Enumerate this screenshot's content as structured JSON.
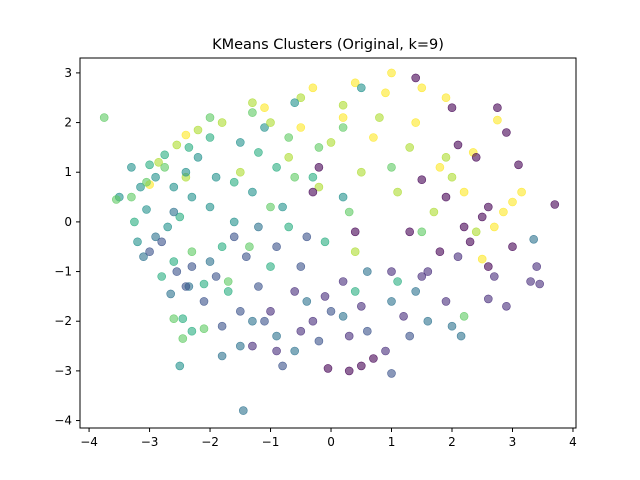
{
  "chart_data": {
    "type": "scatter",
    "title": "KMeans Clusters (Original, k=9)",
    "xlabel": "",
    "ylabel": "",
    "xlim": [
      -4.15,
      4.05
    ],
    "ylim": [
      -4.15,
      3.3
    ],
    "xticks": [
      -4,
      -3,
      -2,
      -1,
      0,
      1,
      2,
      3,
      4
    ],
    "yticks": [
      -4,
      -3,
      -2,
      -1,
      0,
      1,
      2,
      3
    ],
    "grid": false,
    "legend": "none",
    "marker_alpha": 0.6,
    "colormap": "viridis",
    "cluster_colors": [
      "#440154",
      "#472d7b",
      "#3b528b",
      "#2c728e",
      "#21918c",
      "#28ae80",
      "#5ec962",
      "#addc30",
      "#fde725"
    ],
    "series": [
      {
        "values": [
          [
            1.5,
            0.85
          ],
          [
            2.6,
            0.3
          ],
          [
            2.2,
            -0.1
          ],
          [
            3.7,
            0.35
          ],
          [
            3.1,
            1.15
          ],
          [
            2.75,
            2.3
          ],
          [
            2.9,
            1.8
          ],
          [
            3.0,
            -0.5
          ],
          [
            2.6,
            -0.9
          ],
          [
            2.3,
            -0.4
          ],
          [
            1.4,
            2.9
          ],
          [
            2.0,
            2.3
          ],
          [
            0.5,
            -2.9
          ],
          [
            0.7,
            -2.75
          ],
          [
            -0.05,
            -2.95
          ],
          [
            0.3,
            -3.0
          ],
          [
            1.3,
            -0.2
          ],
          [
            1.9,
            0.5
          ],
          [
            2.4,
            1.3
          ],
          [
            2.1,
            1.55
          ],
          [
            -0.3,
            0.6
          ],
          [
            0.4,
            -0.2
          ],
          [
            -0.2,
            1.1
          ],
          [
            2.5,
            0.1
          ],
          [
            1.8,
            -0.6
          ]
        ]
      },
      {
        "values": [
          [
            2.9,
            -1.7
          ],
          [
            3.45,
            -1.25
          ],
          [
            3.3,
            -1.2
          ],
          [
            3.4,
            -0.9
          ],
          [
            2.7,
            -1.1
          ],
          [
            1.9,
            -1.6
          ],
          [
            1.6,
            -1.0
          ],
          [
            1.2,
            -1.9
          ],
          [
            0.5,
            -1.7
          ],
          [
            -0.1,
            -1.5
          ],
          [
            -0.5,
            -2.2
          ],
          [
            -0.9,
            -2.6
          ],
          [
            -1.3,
            -2.5
          ],
          [
            -1.0,
            -1.8
          ],
          [
            0.9,
            -2.6
          ],
          [
            1.5,
            -1.1
          ],
          [
            2.1,
            -0.7
          ],
          [
            0.2,
            -1.2
          ],
          [
            -0.6,
            -1.4
          ],
          [
            1.0,
            -1.0
          ],
          [
            2.6,
            -1.55
          ],
          [
            0.3,
            -2.3
          ],
          [
            -0.3,
            -2.0
          ]
        ]
      },
      {
        "values": [
          [
            -1.4,
            -0.7
          ],
          [
            -1.9,
            -1.1
          ],
          [
            -2.3,
            -0.9
          ],
          [
            -2.55,
            -1.0
          ],
          [
            -1.1,
            -2.0
          ],
          [
            -0.8,
            -2.9
          ],
          [
            -0.2,
            -2.4
          ],
          [
            0.6,
            -2.2
          ],
          [
            1.0,
            -3.05
          ],
          [
            -1.8,
            -2.1
          ],
          [
            -2.1,
            -1.6
          ],
          [
            -1.2,
            -1.3
          ],
          [
            -0.5,
            -0.9
          ],
          [
            -1.6,
            -0.3
          ],
          [
            -0.9,
            -0.5
          ],
          [
            -2.8,
            -0.4
          ],
          [
            -3.0,
            -0.6
          ],
          [
            0.0,
            -1.8
          ],
          [
            1.3,
            -2.3
          ],
          [
            -1.5,
            -1.8
          ],
          [
            -0.4,
            -0.3
          ],
          [
            -2.4,
            -1.3
          ]
        ]
      },
      {
        "values": [
          [
            -1.45,
            -3.8
          ],
          [
            -2.35,
            -1.3
          ],
          [
            -2.65,
            -1.45
          ],
          [
            -3.1,
            -0.7
          ],
          [
            -2.9,
            -0.3
          ],
          [
            -1.5,
            -2.5
          ],
          [
            -1.8,
            -2.7
          ],
          [
            -0.9,
            -2.3
          ],
          [
            0.2,
            -1.9
          ],
          [
            1.0,
            -1.6
          ],
          [
            1.6,
            -2.0
          ],
          [
            2.0,
            -2.1
          ],
          [
            2.15,
            -2.3
          ],
          [
            -2.0,
            -0.8
          ],
          [
            -1.2,
            -0.1
          ],
          [
            -0.4,
            -1.6
          ],
          [
            0.6,
            -1.0
          ],
          [
            -2.6,
            0.2
          ],
          [
            3.35,
            -0.35
          ],
          [
            -1.3,
            -2.0
          ],
          [
            -0.6,
            -2.6
          ],
          [
            1.4,
            -1.4
          ]
        ]
      },
      {
        "values": [
          [
            -3.5,
            0.5
          ],
          [
            -3.15,
            0.7
          ],
          [
            -3.3,
            1.1
          ],
          [
            -2.9,
            0.9
          ],
          [
            -2.6,
            0.7
          ],
          [
            -2.3,
            0.5
          ],
          [
            -2.0,
            0.3
          ],
          [
            -1.6,
            0.0
          ],
          [
            -2.2,
            1.3
          ],
          [
            -1.9,
            0.9
          ],
          [
            -1.5,
            1.6
          ],
          [
            -2.7,
            -0.1
          ],
          [
            -3.2,
            -0.4
          ],
          [
            0.5,
            2.7
          ],
          [
            -0.6,
            2.4
          ],
          [
            -1.1,
            1.9
          ],
          [
            -0.8,
            0.3
          ],
          [
            0.2,
            0.5
          ],
          [
            -2.5,
            -2.9
          ],
          [
            -2.4,
            1.0
          ],
          [
            -1.3,
            0.6
          ],
          [
            -3.05,
            0.25
          ]
        ]
      },
      {
        "values": [
          [
            -3.0,
            1.15
          ],
          [
            -2.75,
            1.35
          ],
          [
            -2.35,
            1.5
          ],
          [
            -2.6,
            -0.8
          ],
          [
            -2.8,
            -1.1
          ],
          [
            -2.1,
            -1.25
          ],
          [
            -1.7,
            -1.4
          ],
          [
            -2.3,
            -2.2
          ],
          [
            -1.0,
            -0.9
          ],
          [
            -0.7,
            -0.1
          ],
          [
            -1.6,
            0.8
          ],
          [
            -2.0,
            1.7
          ],
          [
            -1.2,
            1.4
          ],
          [
            -0.3,
            0.9
          ],
          [
            -0.1,
            -0.4
          ],
          [
            -2.5,
            0.1
          ],
          [
            -3.25,
            0.0
          ],
          [
            -2.45,
            -1.95
          ],
          [
            0.4,
            -1.4
          ],
          [
            -1.8,
            -0.5
          ],
          [
            1.1,
            -1.2
          ],
          [
            -0.9,
            1.1
          ]
        ]
      },
      {
        "values": [
          [
            -3.75,
            2.1
          ],
          [
            -3.3,
            0.5
          ],
          [
            -3.55,
            0.45
          ],
          [
            -3.05,
            0.8
          ],
          [
            -2.75,
            1.1
          ],
          [
            -2.6,
            -1.95
          ],
          [
            -2.1,
            -2.15
          ],
          [
            -2.45,
            -2.35
          ],
          [
            -1.7,
            -1.2
          ],
          [
            -1.35,
            -0.5
          ],
          [
            -1.0,
            0.3
          ],
          [
            -0.6,
            0.9
          ],
          [
            -0.2,
            1.5
          ],
          [
            0.3,
            0.2
          ],
          [
            -1.3,
            2.2
          ],
          [
            -2.0,
            2.1
          ],
          [
            -0.7,
            1.7
          ],
          [
            0.2,
            1.9
          ],
          [
            1.0,
            1.1
          ],
          [
            -2.3,
            -0.6
          ],
          [
            1.5,
            -0.2
          ],
          [
            2.2,
            -1.9
          ]
        ]
      },
      {
        "values": [
          [
            -2.85,
            1.2
          ],
          [
            -2.55,
            1.55
          ],
          [
            -2.2,
            1.85
          ],
          [
            -1.8,
            2.0
          ],
          [
            -1.3,
            2.4
          ],
          [
            -0.5,
            2.5
          ],
          [
            0.2,
            2.35
          ],
          [
            0.8,
            2.1
          ],
          [
            1.3,
            1.5
          ],
          [
            -0.7,
            1.3
          ],
          [
            -0.2,
            0.7
          ],
          [
            0.5,
            1.0
          ],
          [
            1.1,
            0.6
          ],
          [
            1.7,
            0.2
          ],
          [
            2.4,
            -0.2
          ],
          [
            -1.5,
            1.0
          ],
          [
            -1.0,
            2.0
          ],
          [
            0.0,
            1.6
          ],
          [
            -2.4,
            0.9
          ],
          [
            1.9,
            1.3
          ],
          [
            0.4,
            -0.6
          ],
          [
            2.0,
            0.9
          ]
        ]
      },
      {
        "values": [
          [
            -3.0,
            0.75
          ],
          [
            -2.4,
            1.75
          ],
          [
            -1.1,
            2.3
          ],
          [
            -0.3,
            2.7
          ],
          [
            0.4,
            2.8
          ],
          [
            1.0,
            3.0
          ],
          [
            1.5,
            2.7
          ],
          [
            1.9,
            2.5
          ],
          [
            2.35,
            1.4
          ],
          [
            2.7,
            -0.1
          ],
          [
            2.85,
            0.2
          ],
          [
            3.0,
            0.4
          ],
          [
            0.9,
            2.6
          ],
          [
            0.2,
            2.1
          ],
          [
            -0.5,
            1.9
          ],
          [
            1.4,
            2.0
          ],
          [
            1.8,
            1.1
          ],
          [
            2.2,
            0.6
          ],
          [
            0.7,
            1.7
          ],
          [
            2.75,
            2.05
          ],
          [
            3.15,
            0.6
          ],
          [
            2.5,
            -0.75
          ]
        ]
      }
    ]
  }
}
